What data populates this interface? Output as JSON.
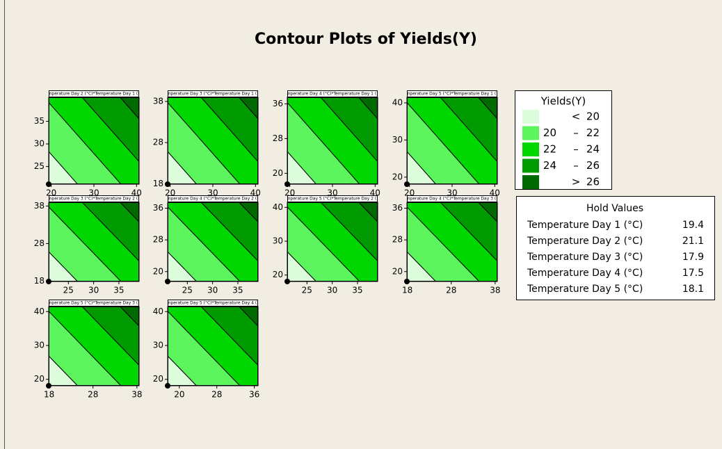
{
  "title": "Contour Plots of Yields(Y)",
  "panels": [
    {
      "title": "Temperature Day 2 (°C)*Temperature Day 1 (°C)",
      "xlim": [
        19.4,
        40.6
      ],
      "ylim": [
        21.1,
        40.3
      ],
      "xticks": [
        20,
        30,
        40
      ],
      "yticks": [
        25,
        30,
        35
      ]
    },
    {
      "title": "Temperature Day 3 (°C)*Temperature Day 1 (°C)",
      "xlim": [
        19.4,
        40.6
      ],
      "ylim": [
        17.9,
        39
      ],
      "xticks": [
        20,
        30,
        40
      ],
      "yticks": [
        18,
        28,
        38
      ]
    },
    {
      "title": "Temperature Day 4 (°C)*Temperature Day 1 (°C)",
      "xlim": [
        19.4,
        40.6
      ],
      "ylim": [
        17.5,
        37.5
      ],
      "xticks": [
        20,
        30,
        40
      ],
      "yticks": [
        20,
        28,
        36
      ]
    },
    {
      "title": "Temperature Day 5 (°C)*Temperature Day 1 (°C)",
      "xlim": [
        19.4,
        40.6
      ],
      "ylim": [
        18.1,
        41.5
      ],
      "xticks": [
        20,
        30,
        40
      ],
      "yticks": [
        20,
        30,
        40
      ]
    },
    {
      "title": "Temperature Day 3 (°C)*Temperature Day 2 (°C)",
      "xlim": [
        21.1,
        39
      ],
      "ylim": [
        17.9,
        39
      ],
      "xticks": [
        25,
        30,
        35
      ],
      "yticks": [
        18,
        28,
        38
      ]
    },
    {
      "title": "Temperature Day 4 (°C)*Temperature Day 2 (°C)",
      "xlim": [
        21.1,
        39
      ],
      "ylim": [
        17.5,
        37.5
      ],
      "xticks": [
        25,
        30,
        35
      ],
      "yticks": [
        20,
        28,
        36
      ]
    },
    {
      "title": "Temperature Day 5 (°C)*Temperature Day 2 (°C)",
      "xlim": [
        21.1,
        39
      ],
      "ylim": [
        18.1,
        41.5
      ],
      "xticks": [
        25,
        30,
        35
      ],
      "yticks": [
        20,
        30,
        40
      ]
    },
    {
      "title": "Temperature Day 4 (°C)*Temperature Day 3 (°C)",
      "xlim": [
        17.9,
        38.5
      ],
      "ylim": [
        17.5,
        37.5
      ],
      "xticks": [
        18,
        28,
        38
      ],
      "yticks": [
        20,
        28,
        36
      ]
    },
    {
      "title": "Temperature Day 5 (°C)*Temperature Day 3 (°C)",
      "xlim": [
        17.9,
        38.5
      ],
      "ylim": [
        18.1,
        41.5
      ],
      "xticks": [
        18,
        28,
        38
      ],
      "yticks": [
        20,
        30,
        40
      ]
    },
    {
      "title": "Temperature Day 5 (°C)*Temperature Day 4 (°C)",
      "xlim": [
        17.5,
        36.8
      ],
      "ylim": [
        18.1,
        41.5
      ],
      "xticks": [
        20,
        28,
        36
      ],
      "yticks": [
        20,
        30,
        40
      ]
    }
  ],
  "legend": {
    "title": "Yields(Y)",
    "items": [
      {
        "op": "<",
        "value": 20,
        "color": "#dcfcdc"
      },
      {
        "low": 20,
        "sep": "–",
        "high": 22,
        "color": "#5df55d"
      },
      {
        "low": 22,
        "sep": "–",
        "high": 24,
        "color": "#00d700"
      },
      {
        "low": 24,
        "sep": "–",
        "high": 26,
        "color": "#009b00"
      },
      {
        "op": ">",
        "value": 26,
        "color": "#006a00"
      }
    ]
  },
  "hold_values": {
    "title": "Hold Values",
    "rows": [
      {
        "name": "Temperature Day 1 (°C)",
        "value": 19.4
      },
      {
        "name": "Temperature Day 2 (°C)",
        "value": 21.1
      },
      {
        "name": "Temperature Day 3 (°C)",
        "value": 17.9
      },
      {
        "name": "Temperature Day 4 (°C)",
        "value": 17.5
      },
      {
        "name": "Temperature Day 5 (°C)",
        "value": 18.1
      }
    ]
  }
}
